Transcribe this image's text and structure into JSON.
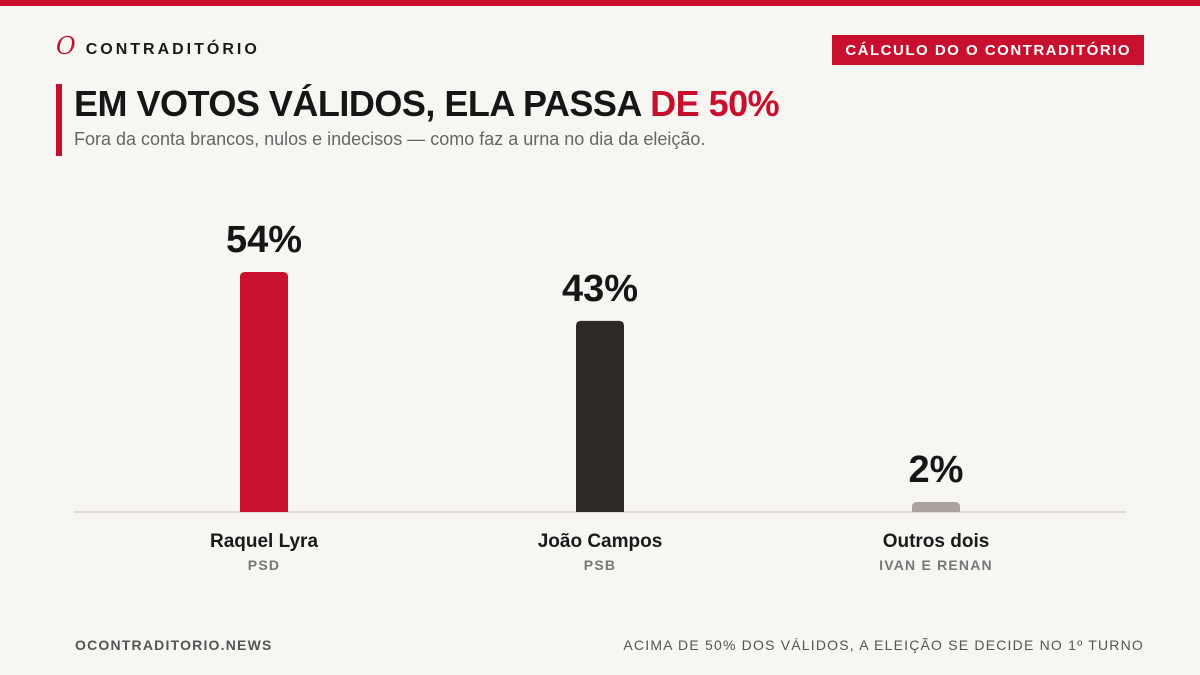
{
  "brand": {
    "mark": "O",
    "name": "CONTRADITÓRIO"
  },
  "badge": "CÁLCULO DO O CONTRADITÓRIO",
  "headline": {
    "main": "EM VOTOS VÁLIDOS, ELA PASSA ",
    "accent": "DE 50%"
  },
  "subtitle": "Fora da conta brancos, nulos e indecisos — como faz a urna no dia da eleição.",
  "chart_data": {
    "type": "bar",
    "categories": [
      "Raquel Lyra",
      "João Campos",
      "Outros dois"
    ],
    "sublabels": [
      "PSD",
      "PSB",
      "IVAN E RENAN"
    ],
    "values": [
      54,
      43,
      2
    ],
    "value_labels": [
      "54%",
      "43%",
      "2%"
    ],
    "colors": [
      "#c8102e",
      "#2e2926",
      "#aaa49d"
    ],
    "ylim": [
      0,
      54
    ],
    "grid": false
  },
  "footer": {
    "left": "OCONTRADITORIO.NEWS",
    "right": "ACIMA DE 50% DOS VÁLIDOS, A ELEIÇÃO SE DECIDE NO 1º TURNO"
  }
}
